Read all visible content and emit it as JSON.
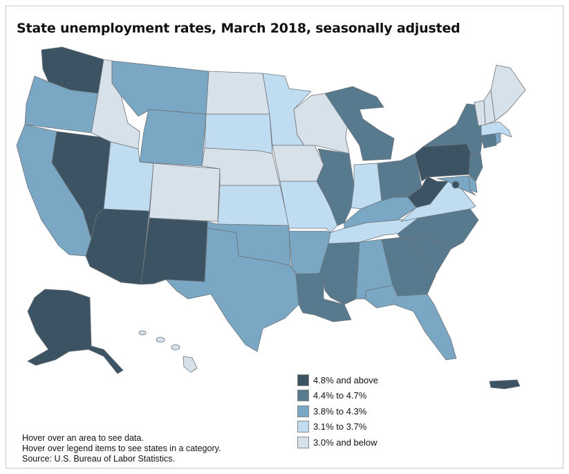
{
  "title": "State unemployment rates, March 2018, seasonally adjusted",
  "legend": [
    {
      "label": "4.8% and above",
      "color": "#3b5363"
    },
    {
      "label": "4.4% to 4.7%",
      "color": "#587a8f"
    },
    {
      "label": "3.8% to 4.3%",
      "color": "#7aa7c4"
    },
    {
      "label": "3.1% to 3.7%",
      "color": "#bfdcf0"
    },
    {
      "label": "3.0% and below",
      "color": "#d6e1ea"
    }
  ],
  "notes": {
    "line1": "Hover over an area to see data.",
    "line2": "Hover over legend items to see states in a category.",
    "line3": "Source: U.S. Bureau of Labor Statistics."
  },
  "states": {
    "WA": 1,
    "OR": 3,
    "CA": 3,
    "NV": 1,
    "ID": 5,
    "MT": 3,
    "WY": 3,
    "UT": 4,
    "AZ": 1,
    "CO": 5,
    "NM": 1,
    "ND": 5,
    "SD": 4,
    "NE": 5,
    "KS": 4,
    "OK": 3,
    "TX": 3,
    "MN": 4,
    "IA": 5,
    "MO": 4,
    "AR": 3,
    "LA": 2,
    "WI": 5,
    "IL": 2,
    "MS": 2,
    "MI": 2,
    "IN": 4,
    "KY": 3,
    "TN": 4,
    "AL": 3,
    "OH": 2,
    "GA": 2,
    "FL": 3,
    "SC": 2,
    "NC": 2,
    "VA": 4,
    "WV": 1,
    "PA": 1,
    "NY": 2,
    "NJ": 2,
    "DE": 3,
    "MD": 3,
    "DC": 1,
    "CT": 2,
    "RI": 3,
    "MA": 4,
    "VT": 5,
    "NH": 5,
    "ME": 5,
    "AK": 1,
    "HI": 5,
    "PR": 1
  }
}
